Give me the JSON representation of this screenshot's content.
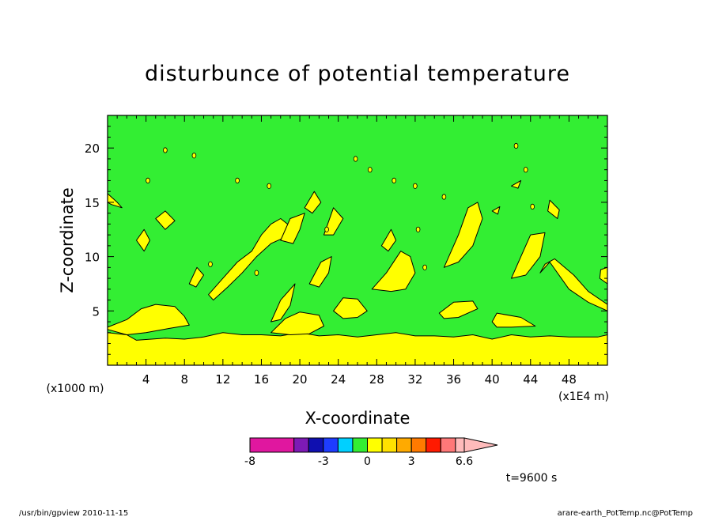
{
  "chart_data": {
    "type": "heatmap",
    "title": "disturbunce of potential temperature",
    "xlabel": "X-coordinate",
    "ylabel": "Z-coordinate",
    "x_unit_label": "(x1E4 m)",
    "y_unit_label": "(x1000 m)",
    "xlim": [
      0,
      52
    ],
    "ylim": [
      0,
      23
    ],
    "x_ticks": [
      "4",
      "8",
      "12",
      "16",
      "20",
      "24",
      "28",
      "32",
      "36",
      "40",
      "44",
      "48"
    ],
    "y_ticks": [
      "5",
      "10",
      "15",
      "20"
    ],
    "colorbar": {
      "labels": [
        "-8",
        "-3",
        "0",
        "3",
        "6.6"
      ],
      "levels": [
        -8,
        -5,
        -4,
        -3,
        -2,
        -1,
        0,
        1,
        2,
        3,
        4,
        5,
        6,
        6.6
      ],
      "colors": [
        "#e0179f",
        "#7d1ab5",
        "#0f0fb0",
        "#1e3cff",
        "#00d0ff",
        "#33ee33",
        "#ffff00",
        "#ffe100",
        "#ffaa00",
        "#ff7a00",
        "#ff1a00",
        "#ff7878",
        "#ffbbbb"
      ]
    },
    "field_description_colors": {
      "background": "#33ee33",
      "positive": "#ffff00"
    },
    "time_label": "t=9600 s"
  },
  "footer": {
    "left": "/usr/bin/gpview  2010-11-15",
    "right": "arare-earth_PotTemp.nc@PotTemp"
  }
}
